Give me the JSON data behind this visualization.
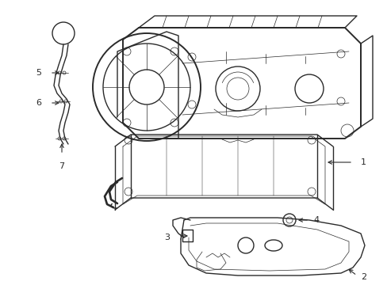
{
  "bg_color": "#ffffff",
  "line_color": "#2a2a2a",
  "lw_main": 1.0,
  "lw_thin": 0.5,
  "lw_thick": 1.4,
  "label_fontsize": 8,
  "fig_width": 4.89,
  "fig_height": 3.6,
  "dpi": 100,
  "xmax": 489,
  "ymax": 360
}
